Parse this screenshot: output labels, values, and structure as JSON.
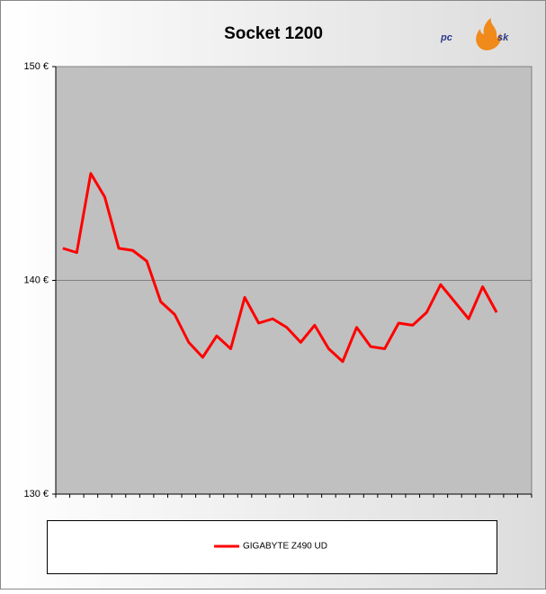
{
  "chart_data": {
    "type": "line",
    "title": "Socket 1200",
    "logo": {
      "left": "pc",
      "right": "sk"
    },
    "categories": [
      null,
      null,
      null,
      null,
      null,
      null,
      null,
      null,
      null,
      null,
      null,
      null,
      null,
      null,
      null,
      null,
      null,
      null,
      null,
      null,
      null,
      null,
      null,
      null,
      null,
      null,
      null,
      null,
      null,
      null,
      null,
      null,
      null,
      null
    ],
    "series": [
      {
        "name": "GIGABYTE Z490 UD",
        "color": "#ff0000",
        "values": [
          141.5,
          141.3,
          145.0,
          143.9,
          141.5,
          141.4,
          140.9,
          139.0,
          138.4,
          137.1,
          136.4,
          137.4,
          136.8,
          139.2,
          138.0,
          138.2,
          137.8,
          137.1,
          137.9,
          136.8,
          136.2,
          137.8,
          136.9,
          136.8,
          138.0,
          137.9,
          138.5,
          139.8,
          139.0,
          138.2,
          139.7,
          138.5,
          null,
          null
        ]
      }
    ],
    "ylim": [
      130,
      150
    ],
    "yticks": [
      {
        "value": 130,
        "label": "130 €"
      },
      {
        "value": 140,
        "label": "140 €"
      },
      {
        "value": 150,
        "label": "150 €"
      }
    ],
    "grid": true,
    "plot_background": "#c0c0c0",
    "legend": "bottom"
  }
}
